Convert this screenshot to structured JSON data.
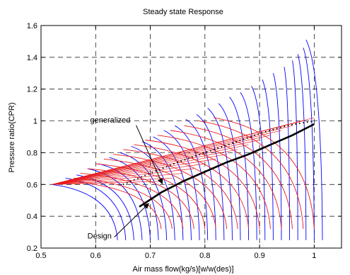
{
  "chart_data": {
    "type": "line",
    "title": "Steady state Response",
    "xlabel": "Air mass flow(kg/s)[w/w(des)]",
    "ylabel": "Pressure ratio(CPR)",
    "xlim": [
      0.5,
      1.05
    ],
    "ylim": [
      0.2,
      1.6
    ],
    "xticks": [
      0.5,
      0.6,
      0.7,
      0.8,
      0.9,
      1.0
    ],
    "xtick_labels": [
      "0.5",
      "0.6",
      "0.7",
      "0.8",
      "0.9",
      "1"
    ],
    "yticks": [
      0.2,
      0.4,
      0.6,
      0.8,
      1.0,
      1.2,
      1.4,
      1.6
    ],
    "ytick_labels": [
      "0.2",
      "0.4",
      "0.6",
      "0.8",
      "1",
      "1.2",
      "1.4",
      "1.6"
    ],
    "grid": true,
    "grid_style": "dashed",
    "colors": {
      "blue_family": "#0000ff",
      "red_family": "#e8191a",
      "operating_line": "#000000"
    },
    "series": [
      {
        "style": "solid-black-thick",
        "x": [
          0.68,
          0.72,
          0.76,
          0.8,
          0.84,
          0.88,
          0.92,
          0.96,
          1.0
        ],
        "y": [
          0.46,
          0.55,
          0.62,
          0.68,
          0.74,
          0.79,
          0.85,
          0.91,
          0.98
        ]
      },
      {
        "style": "dotted-black",
        "x": [
          0.65,
          0.7,
          0.75,
          0.8,
          0.85,
          0.9,
          0.95,
          1.0
        ],
        "y": [
          0.6,
          0.67,
          0.74,
          0.8,
          0.86,
          0.92,
          0.97,
          1.0
        ]
      }
    ],
    "blue_speed_lines": {
      "stonewall_x": [
        0.64,
        0.655,
        0.67,
        0.685,
        0.7,
        0.715,
        0.73,
        0.745,
        0.76,
        0.775,
        0.79,
        0.805,
        0.82,
        0.835,
        0.85,
        0.865,
        0.88,
        0.895,
        0.91,
        0.925,
        0.94,
        0.955,
        0.97,
        0.985,
        1.0,
        1.015
      ],
      "surge_x": [
        0.52,
        0.545,
        0.565,
        0.585,
        0.605,
        0.625,
        0.645,
        0.665,
        0.685,
        0.705,
        0.725,
        0.745,
        0.765,
        0.785,
        0.805,
        0.825,
        0.845,
        0.865,
        0.885,
        0.905,
        0.925,
        0.945,
        0.96,
        0.97,
        0.98,
        0.985
      ],
      "surge_y": [
        0.6,
        0.64,
        0.66,
        0.7,
        0.73,
        0.77,
        0.8,
        0.84,
        0.87,
        0.9,
        0.94,
        0.97,
        1.01,
        1.04,
        1.08,
        1.11,
        1.15,
        1.18,
        1.22,
        1.26,
        1.3,
        1.34,
        1.38,
        1.42,
        1.46,
        1.51
      ],
      "bottom_y": 0.25
    },
    "red_speed_lines": {
      "stonewall_x": [
        0.72,
        0.74,
        0.76,
        0.78,
        0.8,
        0.82,
        0.84,
        0.86,
        0.88,
        0.9,
        0.92,
        0.94,
        0.96,
        0.98,
        1.0
      ],
      "surge_y": [
        0.62,
        0.64,
        0.67,
        0.7,
        0.73,
        0.76,
        0.79,
        0.82,
        0.85,
        0.88,
        0.91,
        0.94,
        0.97,
        1.0,
        1.02
      ],
      "bottom_y": 0.32
    },
    "annotations": [
      {
        "text": "generalized",
        "x": 0.59,
        "y": 0.99,
        "arrow_to_x": 0.722,
        "arrow_to_y": 0.605
      },
      {
        "text": "Design",
        "x": 0.585,
        "y": 0.26,
        "arrow_to_x": 0.697,
        "arrow_to_y": 0.48
      }
    ]
  }
}
